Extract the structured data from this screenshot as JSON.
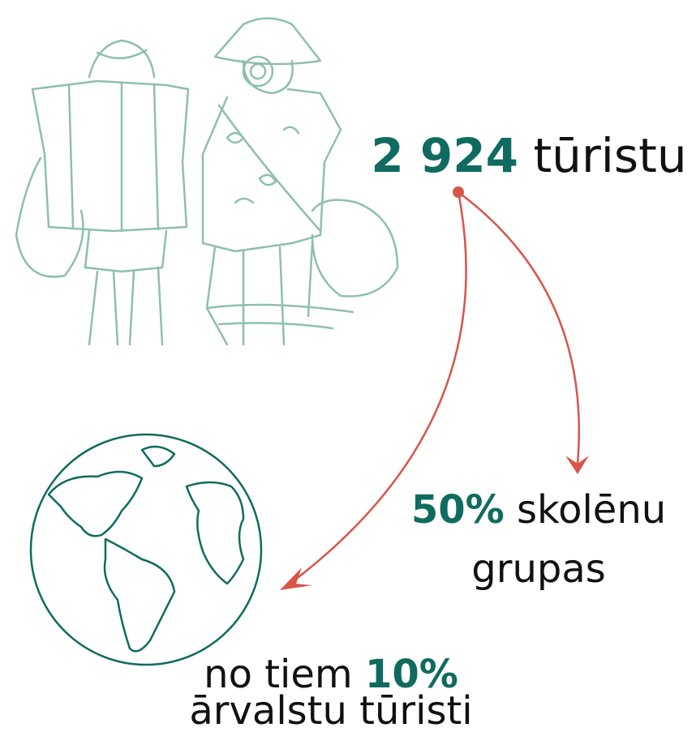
{
  "headline": {
    "value": "2 924",
    "label": "tūristu"
  },
  "school_groups": {
    "value": "50%",
    "label": "skolēnu",
    "label_line2": "grupas"
  },
  "foreign": {
    "prefix": "no tiem",
    "value": "10%",
    "label": "ārvalstu tūristi"
  }
}
